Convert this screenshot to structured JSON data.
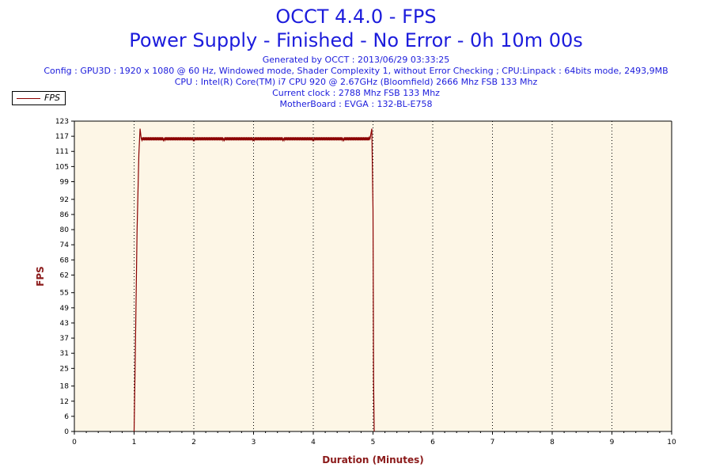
{
  "header": {
    "title": "OCCT 4.4.0 - FPS",
    "subtitle": "Power Supply - Finished - No Error - 0h 10m 00s",
    "info": [
      "Generated by OCCT : 2013/06/29 03:33:25",
      "Config : GPU3D : 1920 x 1080 @ 60 Hz, Windowed mode, Shader Complexity 1, without Error Checking ; CPU:Linpack : 64bits mode, 2493,9MB",
      "CPU : Intel(R) Core(TM) i7 CPU 920 @ 2.67GHz (Bloomfield) 2666 Mhz FSB 133 Mhz",
      "Current clock : 2788 Mhz FSB 133 Mhz",
      "MotherBoard : EVGA : 132-BL-E758"
    ]
  },
  "colors": {
    "title": "#1c1cdc",
    "plot_bg": "#fdf6e6",
    "series": "#8b0000",
    "axis_label": "#8b1a1a"
  },
  "chart_data": {
    "type": "line",
    "xlabel": "Duration (Minutes)",
    "ylabel": "FPS",
    "xlim": [
      0,
      10
    ],
    "ylim": [
      0,
      123
    ],
    "xticks": [
      0,
      1,
      2,
      3,
      4,
      5,
      6,
      7,
      8,
      9,
      10
    ],
    "yticks": [
      0,
      6,
      12,
      18,
      25,
      31,
      37,
      43,
      49,
      55,
      62,
      68,
      74,
      80,
      86,
      92,
      99,
      105,
      111,
      117,
      123
    ],
    "grid": true,
    "legend": "top-left",
    "series": [
      {
        "name": "FPS",
        "x": [
          1.0,
          1.02,
          1.05,
          1.08,
          1.1,
          1.12,
          1.5,
          2.0,
          2.5,
          3.0,
          3.5,
          4.0,
          4.5,
          4.95,
          4.98,
          5.0,
          5.01,
          5.02
        ],
        "y": [
          0,
          30,
          80,
          110,
          120,
          116,
          116,
          116,
          116,
          116,
          116,
          116,
          116,
          116,
          120,
          88,
          20,
          0
        ]
      }
    ]
  }
}
